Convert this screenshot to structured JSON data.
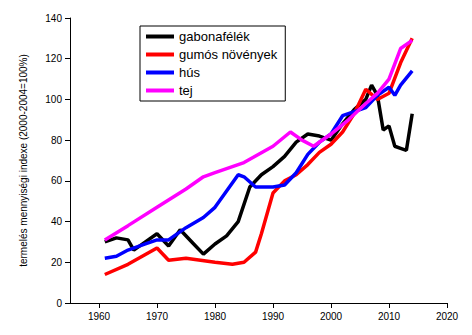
{
  "chart_data": {
    "type": "line",
    "y_label": "termelés mennyiségi indexe (2000-2004=100%)",
    "xlim": [
      1955,
      2020
    ],
    "xticks": [
      1960,
      1970,
      1980,
      1990,
      2000,
      2010,
      2020
    ],
    "ylim": [
      0,
      140
    ],
    "yticks": [
      0,
      20,
      40,
      60,
      80,
      100,
      120,
      140
    ],
    "grid": false,
    "legend": "top",
    "series": [
      {
        "name": "gabonafélék",
        "color": "#000000",
        "x": [
          1961,
          1963,
          1965,
          1966,
          1968,
          1970,
          1972,
          1974,
          1976,
          1978,
          1980,
          1982,
          1984,
          1986,
          1988,
          1990,
          1992,
          1994,
          1996,
          1998,
          2000,
          2002,
          2004,
          2006,
          2007,
          2008,
          2009,
          2010,
          2011,
          2012,
          2013,
          2014
        ],
        "values": [
          30,
          32,
          31,
          26,
          30,
          34,
          28,
          36,
          30,
          24,
          29,
          33,
          40,
          57,
          63,
          67,
          72,
          79,
          83,
          82,
          80,
          88,
          95,
          100,
          107,
          102,
          85,
          87,
          77,
          76,
          75,
          93
        ]
      },
      {
        "name": "gumós növények",
        "color": "#ff0000",
        "x": [
          1961,
          1965,
          1970,
          1972,
          1975,
          1980,
          1983,
          1985,
          1987,
          1988,
          1990,
          1992,
          1994,
          1996,
          1998,
          2000,
          2002,
          2004,
          2006,
          2008,
          2010,
          2012,
          2014
        ],
        "values": [
          14,
          19,
          27,
          21,
          22,
          20,
          19,
          20,
          25,
          34,
          54,
          60,
          63,
          68,
          74,
          78,
          84,
          93,
          105,
          100,
          103,
          118,
          130
        ]
      },
      {
        "name": "hús",
        "color": "#0000ff",
        "x": [
          1961,
          1963,
          1965,
          1968,
          1970,
          1972,
          1975,
          1978,
          1980,
          1982,
          1984,
          1985,
          1987,
          1990,
          1992,
          1994,
          1996,
          1998,
          2000,
          2002,
          2004,
          2006,
          2008,
          2010,
          2011,
          2012,
          2014
        ],
        "values": [
          22,
          23,
          26,
          29,
          31,
          31,
          37,
          42,
          47,
          55,
          63,
          62,
          57,
          57,
          58,
          64,
          73,
          79,
          83,
          92,
          94,
          96,
          102,
          106,
          102,
          107,
          114
        ]
      },
      {
        "name": "tej",
        "color": "#ff00ff",
        "x": [
          1961,
          1965,
          1970,
          1975,
          1978,
          1980,
          1985,
          1990,
          1993,
          1995,
          1997,
          2000,
          2003,
          2006,
          2008,
          2010,
          2012,
          2014
        ],
        "values": [
          31,
          38,
          47,
          56,
          62,
          64,
          69,
          77,
          84,
          80,
          77,
          83,
          90,
          98,
          103,
          110,
          125,
          129
        ]
      }
    ]
  }
}
